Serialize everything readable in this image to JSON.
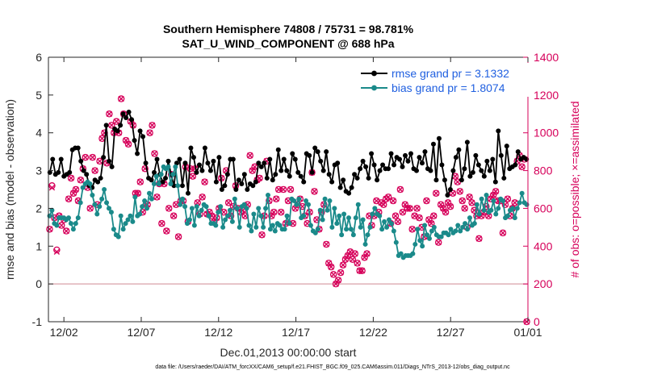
{
  "chart_data": {
    "type": "line",
    "title_lines": [
      "Southern Hemisphere 74808 / 75731 = 98.781%",
      "SAT_U_WIND_COMPONENT @ 688 hPa"
    ],
    "xlabel": "Dec.01,2013 00:00:00 start",
    "ylabel": "rmse and bias (model - observation)",
    "ylabel_right": "# of obs: o=possible; ×=assimilated",
    "x_start": "2013-12-01",
    "xlim": [
      0,
      31
    ],
    "ylim": [
      -1,
      6
    ],
    "ylim_right": [
      0,
      1400
    ],
    "x_ticks": [
      {
        "x": 1,
        "label": "12/02"
      },
      {
        "x": 6,
        "label": "12/07"
      },
      {
        "x": 11,
        "label": "12/12"
      },
      {
        "x": 16,
        "label": "12/17"
      },
      {
        "x": 21,
        "label": "12/22"
      },
      {
        "x": 26,
        "label": "12/27"
      },
      {
        "x": 31,
        "label": "01/01"
      }
    ],
    "y_ticks": [
      -1,
      0,
      1,
      2,
      3,
      4,
      5,
      6
    ],
    "y_ticks_right": [
      0,
      200,
      400,
      600,
      800,
      1000,
      1200,
      1400
    ],
    "zero_line": 0,
    "legend": {
      "placement": "top-right",
      "entries": [
        {
          "label": "rmse grand pr = 3.1332",
          "color": "#000000"
        },
        {
          "label": "bias grand pr = 1.8074",
          "color": "#1a8a8a"
        }
      ]
    },
    "series": [
      {
        "name": "rmse grand pr = 3.1332",
        "color": "#000000",
        "axis": "left",
        "values": [
          2.95,
          3.3,
          2.9,
          2.95,
          3.3,
          2.85,
          2.9,
          2.95,
          3.55,
          3.6,
          3.6,
          3.25,
          3.0,
          2.9,
          2.6,
          2.55,
          2.75,
          2.7,
          2.8,
          3.35,
          4.2,
          3.25,
          3.1,
          4.1,
          4.05,
          4.2,
          4.5,
          4.4,
          4.55,
          4.35,
          3.8,
          3.45,
          4.05,
          3.9,
          3.2,
          2.8,
          2.75,
          2.95,
          3.3,
          2.9,
          2.7,
          2.8,
          3.25,
          2.9,
          2.6,
          3.2,
          3.3,
          2.6,
          3.2,
          2.4,
          3.6,
          3.35,
          2.95,
          3.15,
          3.0,
          3.6,
          3.2,
          3.0,
          3.25,
          2.7,
          3.35,
          2.5,
          2.6,
          2.9,
          3.3,
          3.3,
          2.5,
          2.75,
          2.65,
          2.9,
          2.5,
          2.65,
          2.6,
          2.7,
          3.2,
          3.1,
          3.2,
          2.8,
          3.3,
          2.75,
          2.9,
          3.55,
          3.0,
          3.3,
          3.0,
          2.85,
          3.45,
          3.3,
          2.95,
          2.85,
          2.7,
          3.45,
          3.4,
          2.95,
          3.6,
          3.5,
          3.25,
          3.0,
          3.5,
          2.9,
          2.7,
          3.15,
          3.2,
          2.55,
          2.75,
          2.45,
          2.4,
          2.55,
          2.9,
          2.8,
          3.05,
          3.25,
          3.1,
          2.8,
          3.45,
          3.15,
          2.75,
          3.0,
          3.15,
          3.05,
          3.05,
          3.45,
          3.15,
          3.35,
          3.3,
          3.1,
          3.4,
          3.25,
          3.45,
          3.05,
          3.0,
          3.35,
          3.2,
          3.5,
          3.05,
          3.0,
          3.7,
          2.75,
          3.85,
          3.15,
          2.75,
          2.35,
          2.5,
          3.0,
          3.35,
          3.55,
          2.75,
          3.05,
          3.75,
          2.85,
          2.95,
          3.4,
          3.15,
          3.0,
          2.85,
          3.25,
          3.0,
          3.3,
          2.7,
          4.05,
          3.4,
          2.8,
          3.65,
          3.05,
          3.1,
          3.15,
          3.5,
          3.3,
          3.35,
          3.3
        ]
      },
      {
        "name": "bias grand pr = 1.8074",
        "color": "#1a8a8a",
        "axis": "left",
        "values": [
          1.8,
          1.95,
          1.6,
          1.55,
          1.75,
          1.75,
          1.75,
          1.7,
          1.75,
          1.6,
          1.45,
          1.6,
          1.75,
          2.15,
          2.55,
          2.65,
          2.7,
          2.65,
          2.35,
          2.1,
          1.85,
          2.05,
          2.25,
          2.5,
          2.15,
          2.0,
          1.9,
          1.45,
          1.3,
          1.25,
          1.8,
          1.45,
          1.6,
          1.7,
          1.8,
          1.65,
          2.3,
          1.8,
          1.85,
          2.05,
          2.2,
          2.0,
          2.4,
          2.25,
          2.65,
          2.85,
          2.65,
          2.9,
          3.1,
          3.05,
          3.1,
          2.65,
          2.9,
          3.1,
          2.6,
          2.1,
          2.25,
          2.05,
          1.6,
          1.7,
          2.0,
          1.55,
          2.05,
          1.8,
          1.95,
          2.1,
          2.05,
          1.8,
          1.6,
          1.6,
          1.55,
          1.9,
          2.05,
          1.5,
          1.7,
          1.8,
          1.95,
          1.65,
          2.25,
          2.0,
          1.5,
          2.05,
          2.1,
          2.0,
          1.55,
          1.4,
          1.85,
          1.5,
          2.0,
          1.8,
          1.5,
          2.0,
          2.35,
          1.45,
          1.55,
          1.4,
          1.6,
          1.55,
          1.45,
          1.45,
          1.8,
          1.6,
          2.25,
          2.2,
          2.1,
          2.25,
          1.75,
          1.8,
          2.2,
          2.1,
          1.55,
          1.4,
          1.35,
          1.45,
          1.95,
          1.7,
          2.25,
          1.95,
          2.2,
          1.5,
          2.0,
          1.6,
          1.8,
          1.3,
          1.85,
          1.45,
          1.75,
          1.45,
          1.3,
          1.75,
          2.1,
          1.5,
          1.7,
          1.05,
          1.3,
          1.5,
          1.85,
          2.0,
          1.85,
          1.8,
          1.45,
          1.65,
          1.5,
          1.7,
          1.6,
          1.4,
          1.1,
          0.75,
          0.8,
          0.7,
          0.75,
          0.75,
          0.75,
          0.8,
          1.05,
          1.45,
          1.15,
          1.0,
          1.55,
          1.3,
          1.2,
          1.4,
          1.5,
          1.3,
          1.25,
          1.25,
          1.35,
          1.35,
          1.3,
          1.45,
          1.35,
          1.4,
          1.55,
          1.4,
          1.5,
          1.6,
          1.45,
          1.75,
          1.55,
          1.6,
          2.1,
          1.85,
          2.25,
          1.95,
          2.35,
          1.9,
          1.95,
          2.2,
          1.85,
          2.0,
          2.25,
          2.2,
          1.75,
          1.8,
          1.95,
          2.0,
          1.75,
          2.0,
          2.15,
          2.4,
          2.15,
          2.1
        ]
      }
    ],
    "obs_color": "#d6005a",
    "obs_possible": [
      490,
      720,
      550,
      380,
      560,
      510,
      540,
      480,
      650,
      760,
      680,
      700,
      640,
      750,
      810,
      870,
      710,
      600,
      870,
      800,
      620,
      850,
      970,
      1000,
      840,
      1100,
      1040,
      1000,
      1060,
      1000,
      1180,
      1100,
      960,
      940,
      1060,
      1040,
      680,
      680,
      740,
      580,
      810,
      620,
      1000,
      1040,
      890,
      660,
      730,
      520,
      730,
      480,
      600,
      780,
      560,
      620,
      450,
      640,
      640,
      820,
      530,
      810,
      770,
      810,
      630,
      570,
      660,
      740,
      570,
      580,
      560,
      530,
      550,
      600,
      760,
      580,
      800,
      630,
      560,
      610,
      720,
      600,
      580,
      590,
      560,
      620,
      880,
      800,
      820,
      750,
      760,
      460,
      560,
      850,
      640,
      560,
      580,
      650,
      700,
      580,
      700,
      520,
      640,
      700,
      520,
      600,
      620,
      650,
      610,
      560,
      520,
      580,
      790,
      690,
      540,
      490,
      580,
      620,
      410,
      310,
      290,
      250,
      200,
      220,
      260,
      300,
      330,
      350,
      370,
      330,
      360,
      310,
      270,
      270,
      340,
      360,
      560,
      510,
      560,
      640,
      580,
      630,
      620,
      650,
      660,
      520,
      640,
      560,
      530,
      700,
      580,
      620,
      600,
      600,
      490,
      560,
      600,
      550,
      500,
      450,
      640,
      540,
      520,
      560,
      680,
      420,
      620,
      600,
      580,
      630,
      610,
      680,
      770,
      740,
      690,
      640,
      600,
      500,
      660,
      630,
      590,
      560,
      440,
      560,
      580,
      610,
      560,
      650,
      670,
      690,
      640,
      640,
      470,
      620,
      650,
      560,
      600,
      630,
      850,
      880,
      820,
      860,
      0
    ],
    "obs_assimilated": [
      490,
      710,
      550,
      370,
      560,
      510,
      540,
      480,
      650,
      760,
      680,
      700,
      640,
      750,
      810,
      870,
      710,
      600,
      870,
      800,
      620,
      850,
      970,
      1000,
      840,
      1100,
      1040,
      1000,
      1060,
      1000,
      1180,
      1100,
      960,
      940,
      1060,
      1040,
      680,
      680,
      740,
      580,
      810,
      620,
      1000,
      1040,
      890,
      660,
      730,
      520,
      730,
      480,
      600,
      780,
      560,
      620,
      450,
      640,
      640,
      820,
      530,
      810,
      770,
      810,
      630,
      570,
      660,
      740,
      570,
      580,
      560,
      530,
      550,
      600,
      760,
      580,
      800,
      630,
      560,
      610,
      720,
      600,
      580,
      590,
      560,
      620,
      880,
      800,
      820,
      750,
      760,
      460,
      560,
      850,
      640,
      560,
      580,
      650,
      700,
      580,
      700,
      520,
      640,
      700,
      520,
      600,
      620,
      650,
      610,
      560,
      520,
      580,
      790,
      690,
      540,
      490,
      580,
      620,
      410,
      310,
      290,
      250,
      200,
      220,
      260,
      300,
      330,
      350,
      370,
      330,
      360,
      310,
      270,
      270,
      340,
      360,
      560,
      510,
      560,
      640,
      580,
      630,
      620,
      650,
      660,
      520,
      640,
      560,
      530,
      700,
      580,
      620,
      600,
      600,
      490,
      560,
      600,
      550,
      500,
      450,
      640,
      540,
      520,
      560,
      680,
      420,
      620,
      600,
      580,
      630,
      610,
      680,
      770,
      740,
      690,
      640,
      600,
      500,
      660,
      630,
      590,
      560,
      440,
      560,
      580,
      610,
      560,
      650,
      670,
      690,
      640,
      640,
      470,
      620,
      650,
      560,
      600,
      630,
      850,
      880,
      820,
      860,
      0
    ]
  },
  "footer": "data file: /Users/raeder/DAI/ATM_forcXX/CAM6_setup/f.e21.FHIST_BGC.f09_025.CAM6assim.011/Diags_NTrS_2013-12/obs_diag_output.nc"
}
